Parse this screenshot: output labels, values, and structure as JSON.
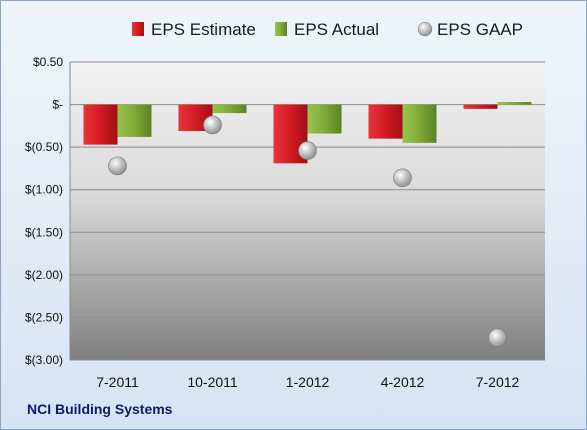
{
  "footer_label": "NCI Building Systems",
  "chart_data": {
    "type": "bar",
    "categories": [
      "7-2011",
      "10-2011",
      "1-2012",
      "4-2012",
      "7-2012"
    ],
    "series": [
      {
        "name": "EPS Estimate",
        "kind": "bar",
        "color": "#d01c22",
        "values": [
          -0.47,
          -0.31,
          -0.69,
          -0.4,
          -0.05
        ]
      },
      {
        "name": "EPS Actual",
        "kind": "bar",
        "color": "#7faa35",
        "values": [
          -0.38,
          -0.1,
          -0.34,
          -0.45,
          0.03
        ]
      },
      {
        "name": "EPS GAAP",
        "kind": "scatter",
        "color": "#b9b9b9",
        "values": [
          -0.72,
          -0.24,
          -0.54,
          -0.86,
          -2.74
        ]
      }
    ],
    "yticks": [
      {
        "value": 0.5,
        "label": "$0.50"
      },
      {
        "value": 0,
        "label": "$-"
      },
      {
        "value": -0.5,
        "label": "$(0.50)"
      },
      {
        "value": -1.0,
        "label": "$(1.00)"
      },
      {
        "value": -1.5,
        "label": "$(1.50)"
      },
      {
        "value": -2.0,
        "label": "$(2.00)"
      },
      {
        "value": -2.5,
        "label": "$(2.50)"
      },
      {
        "value": -3.0,
        "label": "$(3.00)"
      }
    ],
    "ylim": [
      -3.0,
      0.5
    ],
    "grid": true,
    "legend_position": "top"
  }
}
